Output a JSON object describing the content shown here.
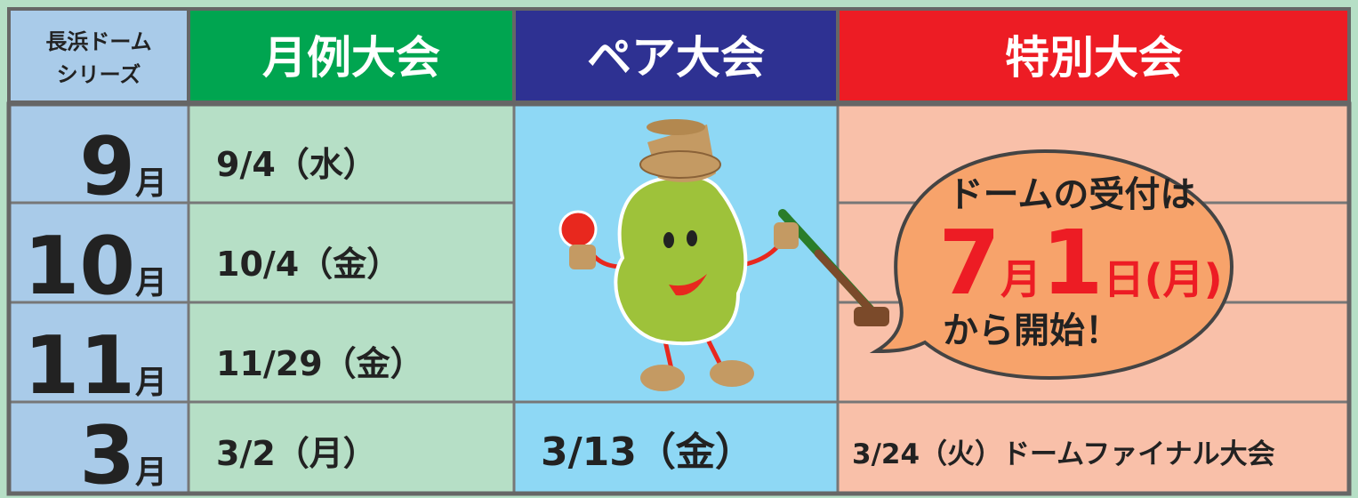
{
  "header": {
    "series_label": [
      "長浜ドーム",
      "シリーズ"
    ],
    "columns": [
      "月例大会",
      "ペア大会",
      "特別大会"
    ]
  },
  "rows": [
    {
      "month": "9",
      "unit": "月",
      "monthly": "9/4（水）"
    },
    {
      "month": "10",
      "unit": "月",
      "monthly": "10/4（金）"
    },
    {
      "month": "11",
      "unit": "月",
      "monthly": "11/29（金）"
    },
    {
      "month": "3",
      "unit": "月",
      "monthly": "3/2（月）",
      "pair": "3/13（金）",
      "special": "3/24（火）ドームファイナル大会"
    }
  ],
  "bubble": {
    "line1": "ドームの受付は",
    "date": [
      "7",
      "月",
      "1",
      "日(月)"
    ],
    "line3": "から開始！"
  }
}
